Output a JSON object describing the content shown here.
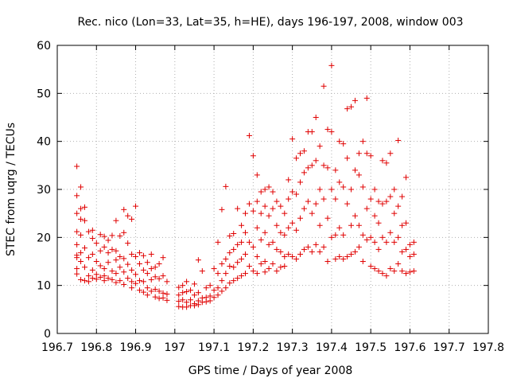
{
  "chart_data": {
    "type": "scatter",
    "title": "Rec. nico (Lon=33, Lat=35, h=HE), days 196-197, 2008, window 003",
    "xlabel": "GPS time / Days of year 2008",
    "ylabel": "STEC from uqrg / TECUs",
    "xlim": [
      196.7,
      197.8
    ],
    "ylim": [
      0,
      60
    ],
    "xticks": [
      196.7,
      196.8,
      196.9,
      197,
      197.1,
      197.2,
      197.3,
      197.4,
      197.5,
      197.6,
      197.7,
      197.8
    ],
    "xtick_labels": [
      "196.7",
      "196.8",
      "196.9",
      "197",
      "197.1",
      "197.2",
      "197.3",
      "197.4",
      "197.5",
      "197.6",
      "197.7",
      "197.8"
    ],
    "yticks": [
      0,
      10,
      20,
      30,
      40,
      50,
      60
    ],
    "ytick_labels": [
      "0",
      "10",
      "20",
      "30",
      "40",
      "50",
      "60"
    ],
    "grid": true,
    "marker": "+",
    "color": "#e00000",
    "points": [
      [
        196.75,
        34.8
      ],
      [
        196.75,
        28.7
      ],
      [
        196.75,
        25.0
      ],
      [
        196.75,
        21.2
      ],
      [
        196.75,
        18.5
      ],
      [
        196.75,
        16.3
      ],
      [
        196.75,
        15.8
      ],
      [
        196.75,
        13.5
      ],
      [
        196.75,
        12.4
      ],
      [
        196.76,
        30.5
      ],
      [
        196.76,
        26.0
      ],
      [
        196.76,
        23.8
      ],
      [
        196.76,
        20.5
      ],
      [
        196.76,
        16.8
      ],
      [
        196.76,
        15.0
      ],
      [
        196.76,
        11.2
      ],
      [
        196.77,
        26.3
      ],
      [
        196.77,
        23.5
      ],
      [
        196.77,
        17.8
      ],
      [
        196.77,
        13.8
      ],
      [
        196.77,
        11.0
      ],
      [
        196.78,
        21.2
      ],
      [
        196.78,
        15.8
      ],
      [
        196.78,
        12.0
      ],
      [
        196.78,
        10.8
      ],
      [
        196.79,
        21.5
      ],
      [
        196.79,
        19.8
      ],
      [
        196.79,
        16.5
      ],
      [
        196.79,
        13.2
      ],
      [
        196.79,
        11.5
      ],
      [
        196.8,
        18.8
      ],
      [
        196.8,
        15.0
      ],
      [
        196.8,
        12.3
      ],
      [
        196.8,
        11.3
      ],
      [
        196.81,
        20.6
      ],
      [
        196.81,
        17.2
      ],
      [
        196.81,
        14.1
      ],
      [
        196.81,
        11.7
      ],
      [
        196.82,
        20.2
      ],
      [
        196.82,
        18.0
      ],
      [
        196.82,
        13.5
      ],
      [
        196.82,
        12.0
      ],
      [
        196.82,
        11.0
      ],
      [
        196.83,
        19.4
      ],
      [
        196.83,
        16.8
      ],
      [
        196.83,
        14.8
      ],
      [
        196.83,
        11.5
      ],
      [
        196.84,
        20.4
      ],
      [
        196.84,
        17.5
      ],
      [
        196.84,
        13.0
      ],
      [
        196.84,
        11.2
      ],
      [
        196.85,
        23.5
      ],
      [
        196.85,
        17.2
      ],
      [
        196.85,
        15.3
      ],
      [
        196.85,
        12.5
      ],
      [
        196.85,
        10.6
      ],
      [
        196.86,
        20.3
      ],
      [
        196.86,
        16.0
      ],
      [
        196.86,
        13.8
      ],
      [
        196.86,
        11.0
      ],
      [
        196.87,
        25.8
      ],
      [
        196.87,
        21.0
      ],
      [
        196.87,
        15.6
      ],
      [
        196.87,
        12.8
      ],
      [
        196.87,
        10.2
      ],
      [
        196.88,
        24.5
      ],
      [
        196.88,
        18.8
      ],
      [
        196.88,
        14.4
      ],
      [
        196.88,
        11.5
      ],
      [
        196.89,
        23.8
      ],
      [
        196.89,
        16.5
      ],
      [
        196.89,
        13.2
      ],
      [
        196.89,
        10.8
      ],
      [
        196.89,
        9.5
      ],
      [
        196.9,
        26.5
      ],
      [
        196.9,
        16.0
      ],
      [
        196.9,
        12.3
      ],
      [
        196.9,
        10.4
      ],
      [
        196.91,
        16.8
      ],
      [
        196.91,
        14.5
      ],
      [
        196.91,
        11.0
      ],
      [
        196.91,
        9.0
      ],
      [
        196.92,
        16.2
      ],
      [
        196.92,
        13.2
      ],
      [
        196.92,
        10.8
      ],
      [
        196.92,
        8.6
      ],
      [
        196.93,
        14.8
      ],
      [
        196.93,
        12.5
      ],
      [
        196.93,
        9.5
      ],
      [
        196.93,
        8.0
      ],
      [
        196.94,
        16.5
      ],
      [
        196.94,
        13.5
      ],
      [
        196.94,
        11.2
      ],
      [
        196.94,
        8.8
      ],
      [
        196.95,
        13.8
      ],
      [
        196.95,
        11.8
      ],
      [
        196.95,
        9.2
      ],
      [
        196.95,
        7.6
      ],
      [
        196.96,
        14.5
      ],
      [
        196.96,
        11.4
      ],
      [
        196.96,
        8.8
      ],
      [
        196.96,
        7.3
      ],
      [
        196.97,
        15.8
      ],
      [
        196.97,
        12.0
      ],
      [
        196.97,
        8.4
      ],
      [
        196.97,
        7.4
      ],
      [
        196.98,
        10.8
      ],
      [
        196.98,
        8.2
      ],
      [
        196.98,
        6.9
      ],
      [
        197.01,
        9.6
      ],
      [
        197.01,
        8.0
      ],
      [
        197.01,
        6.7
      ],
      [
        197.01,
        5.6
      ],
      [
        197.02,
        10.0
      ],
      [
        197.02,
        8.5
      ],
      [
        197.02,
        7.0
      ],
      [
        197.02,
        5.5
      ],
      [
        197.03,
        10.8
      ],
      [
        197.03,
        8.7
      ],
      [
        197.03,
        6.5
      ],
      [
        197.03,
        5.5
      ],
      [
        197.04,
        9.0
      ],
      [
        197.04,
        7.0
      ],
      [
        197.04,
        5.8
      ],
      [
        197.05,
        10.3
      ],
      [
        197.05,
        8.0
      ],
      [
        197.05,
        6.2
      ],
      [
        197.05,
        5.8
      ],
      [
        197.06,
        15.3
      ],
      [
        197.06,
        8.5
      ],
      [
        197.06,
        6.8
      ],
      [
        197.06,
        6.0
      ],
      [
        197.07,
        13.0
      ],
      [
        197.07,
        7.4
      ],
      [
        197.07,
        6.5
      ],
      [
        197.08,
        9.5
      ],
      [
        197.08,
        7.5
      ],
      [
        197.08,
        6.6
      ],
      [
        197.09,
        10.0
      ],
      [
        197.09,
        7.8
      ],
      [
        197.09,
        6.8
      ],
      [
        197.1,
        13.5
      ],
      [
        197.1,
        9.0
      ],
      [
        197.1,
        7.5
      ],
      [
        197.11,
        19.0
      ],
      [
        197.11,
        12.5
      ],
      [
        197.11,
        9.5
      ],
      [
        197.11,
        8.0
      ],
      [
        197.12,
        25.8
      ],
      [
        197.12,
        14.5
      ],
      [
        197.12,
        11.0
      ],
      [
        197.12,
        8.8
      ],
      [
        197.13,
        30.6
      ],
      [
        197.13,
        15.5
      ],
      [
        197.13,
        12.5
      ],
      [
        197.13,
        9.5
      ],
      [
        197.14,
        20.3
      ],
      [
        197.14,
        16.8
      ],
      [
        197.14,
        14.0
      ],
      [
        197.14,
        10.5
      ],
      [
        197.15,
        20.8
      ],
      [
        197.15,
        17.5
      ],
      [
        197.15,
        13.8
      ],
      [
        197.15,
        11.0
      ],
      [
        197.16,
        26.0
      ],
      [
        197.16,
        18.5
      ],
      [
        197.16,
        14.8
      ],
      [
        197.16,
        11.5
      ],
      [
        197.17,
        22.5
      ],
      [
        197.17,
        19.0
      ],
      [
        197.17,
        15.5
      ],
      [
        197.17,
        12.0
      ],
      [
        197.18,
        25.0
      ],
      [
        197.18,
        21.0
      ],
      [
        197.18,
        16.5
      ],
      [
        197.18,
        12.5
      ],
      [
        197.19,
        41.2
      ],
      [
        197.19,
        27.0
      ],
      [
        197.19,
        19.0
      ],
      [
        197.19,
        14.0
      ],
      [
        197.2,
        37.0
      ],
      [
        197.2,
        25.5
      ],
      [
        197.2,
        18.0
      ],
      [
        197.2,
        13.0
      ],
      [
        197.21,
        33.0
      ],
      [
        197.21,
        27.5
      ],
      [
        197.21,
        22.0
      ],
      [
        197.21,
        16.0
      ],
      [
        197.21,
        12.5
      ],
      [
        197.22,
        29.5
      ],
      [
        197.22,
        25.0
      ],
      [
        197.22,
        19.5
      ],
      [
        197.22,
        14.5
      ],
      [
        197.23,
        30.0
      ],
      [
        197.23,
        26.5
      ],
      [
        197.23,
        21.0
      ],
      [
        197.23,
        15.0
      ],
      [
        197.23,
        12.8
      ],
      [
        197.24,
        30.5
      ],
      [
        197.24,
        24.5
      ],
      [
        197.24,
        18.5
      ],
      [
        197.24,
        13.5
      ],
      [
        197.25,
        29.5
      ],
      [
        197.25,
        26.0
      ],
      [
        197.25,
        19.0
      ],
      [
        197.25,
        14.5
      ],
      [
        197.26,
        27.5
      ],
      [
        197.26,
        22.5
      ],
      [
        197.26,
        17.5
      ],
      [
        197.26,
        13.0
      ],
      [
        197.27,
        26.5
      ],
      [
        197.27,
        21.0
      ],
      [
        197.27,
        17.0
      ],
      [
        197.27,
        13.8
      ],
      [
        197.28,
        25.0
      ],
      [
        197.28,
        20.5
      ],
      [
        197.28,
        16.0
      ],
      [
        197.28,
        14.0
      ],
      [
        197.29,
        32.0
      ],
      [
        197.29,
        28.0
      ],
      [
        197.29,
        22.0
      ],
      [
        197.29,
        16.5
      ],
      [
        197.3,
        40.5
      ],
      [
        197.3,
        29.5
      ],
      [
        197.3,
        23.0
      ],
      [
        197.3,
        16.0
      ],
      [
        197.31,
        36.5
      ],
      [
        197.31,
        29.0
      ],
      [
        197.31,
        21.5
      ],
      [
        197.31,
        15.5
      ],
      [
        197.32,
        37.5
      ],
      [
        197.32,
        31.5
      ],
      [
        197.32,
        24.0
      ],
      [
        197.32,
        16.5
      ],
      [
        197.33,
        38.0
      ],
      [
        197.33,
        33.5
      ],
      [
        197.33,
        26.0
      ],
      [
        197.33,
        17.5
      ],
      [
        197.34,
        42.0
      ],
      [
        197.34,
        34.5
      ],
      [
        197.34,
        27.5
      ],
      [
        197.34,
        18.0
      ],
      [
        197.35,
        42.0
      ],
      [
        197.35,
        35.0
      ],
      [
        197.35,
        25.0
      ],
      [
        197.35,
        17.0
      ],
      [
        197.36,
        45.0
      ],
      [
        197.36,
        36.0
      ],
      [
        197.36,
        27.0
      ],
      [
        197.36,
        18.5
      ],
      [
        197.37,
        39.0
      ],
      [
        197.37,
        30.0
      ],
      [
        197.37,
        22.5
      ],
      [
        197.37,
        17.0
      ],
      [
        197.38,
        51.5
      ],
      [
        197.38,
        35.0
      ],
      [
        197.38,
        28.0
      ],
      [
        197.38,
        18.0
      ],
      [
        197.39,
        42.5
      ],
      [
        197.39,
        34.5
      ],
      [
        197.39,
        24.0
      ],
      [
        197.39,
        15.0
      ],
      [
        197.4,
        55.8
      ],
      [
        197.4,
        42.0
      ],
      [
        197.4,
        30.0
      ],
      [
        197.4,
        20.0
      ],
      [
        197.41,
        34.0
      ],
      [
        197.41,
        28.0
      ],
      [
        197.41,
        20.5
      ],
      [
        197.41,
        15.5
      ],
      [
        197.42,
        40.0
      ],
      [
        197.42,
        31.5
      ],
      [
        197.42,
        22.0
      ],
      [
        197.42,
        16.0
      ],
      [
        197.43,
        39.5
      ],
      [
        197.43,
        30.5
      ],
      [
        197.43,
        20.5
      ],
      [
        197.43,
        15.5
      ],
      [
        197.44,
        46.8
      ],
      [
        197.44,
        36.5
      ],
      [
        197.44,
        27.0
      ],
      [
        197.44,
        16.0
      ],
      [
        197.45,
        47.2
      ],
      [
        197.45,
        30.0
      ],
      [
        197.45,
        22.5
      ],
      [
        197.45,
        16.5
      ],
      [
        197.46,
        48.5
      ],
      [
        197.46,
        34.0
      ],
      [
        197.46,
        24.5
      ],
      [
        197.46,
        17.0
      ],
      [
        197.47,
        37.5
      ],
      [
        197.47,
        33.0
      ],
      [
        197.47,
        22.5
      ],
      [
        197.47,
        18.0
      ],
      [
        197.48,
        40.0
      ],
      [
        197.48,
        30.5
      ],
      [
        197.48,
        20.5
      ],
      [
        197.48,
        15.0
      ],
      [
        197.49,
        49.0
      ],
      [
        197.49,
        37.5
      ],
      [
        197.49,
        26.0
      ],
      [
        197.49,
        19.5
      ],
      [
        197.5,
        37.0
      ],
      [
        197.5,
        28.0
      ],
      [
        197.5,
        20.0
      ],
      [
        197.5,
        14.0
      ],
      [
        197.51,
        30.0
      ],
      [
        197.51,
        24.5
      ],
      [
        197.51,
        19.0
      ],
      [
        197.51,
        13.5
      ],
      [
        197.52,
        27.5
      ],
      [
        197.52,
        23.0
      ],
      [
        197.52,
        17.5
      ],
      [
        197.52,
        13.0
      ],
      [
        197.53,
        36.0
      ],
      [
        197.53,
        27.0
      ],
      [
        197.53,
        20.0
      ],
      [
        197.53,
        12.5
      ],
      [
        197.54,
        35.5
      ],
      [
        197.54,
        27.5
      ],
      [
        197.54,
        19.0
      ],
      [
        197.54,
        12.0
      ],
      [
        197.55,
        37.5
      ],
      [
        197.55,
        28.5
      ],
      [
        197.55,
        21.0
      ],
      [
        197.55,
        13.5
      ],
      [
        197.56,
        30.0
      ],
      [
        197.56,
        25.0
      ],
      [
        197.56,
        19.0
      ],
      [
        197.56,
        13.0
      ],
      [
        197.57,
        40.2
      ],
      [
        197.57,
        26.5
      ],
      [
        197.57,
        20.0
      ],
      [
        197.57,
        14.5
      ],
      [
        197.58,
        28.5
      ],
      [
        197.58,
        22.5
      ],
      [
        197.58,
        17.0
      ],
      [
        197.58,
        13.0
      ],
      [
        197.59,
        32.5
      ],
      [
        197.59,
        23.0
      ],
      [
        197.59,
        17.5
      ],
      [
        197.59,
        12.5
      ],
      [
        197.6,
        18.5
      ],
      [
        197.6,
        16.0
      ],
      [
        197.6,
        12.8
      ],
      [
        197.61,
        19.0
      ],
      [
        197.61,
        16.5
      ],
      [
        197.61,
        13.0
      ]
    ]
  }
}
